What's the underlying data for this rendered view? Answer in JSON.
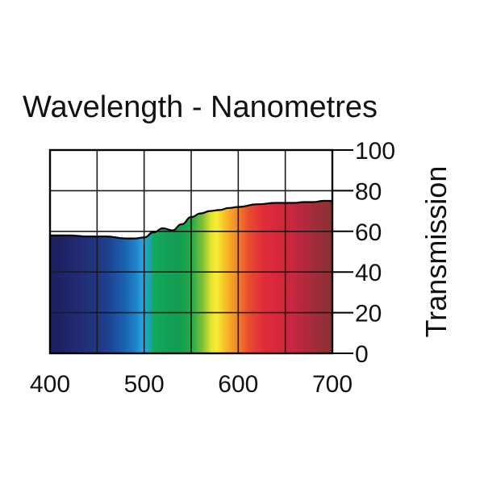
{
  "chart_data": {
    "type": "area",
    "title": "Wavelength - Nanometres",
    "xlabel": "",
    "ylabel": "Transmission",
    "xlim": [
      400,
      700
    ],
    "ylim": [
      0,
      100
    ],
    "x_ticks": [
      "400",
      "500",
      "600",
      "700"
    ],
    "y_ticks": [
      "0",
      "20",
      "40",
      "60",
      "80",
      "100"
    ],
    "grid": true,
    "y_axis_side": "right",
    "fill": "visible-spectrum",
    "series": [
      {
        "x": [
          400,
          420,
          440,
          460,
          480,
          490,
          500,
          510,
          520,
          530,
          540,
          550,
          560,
          570,
          580,
          590,
          600,
          620,
          640,
          660,
          670,
          680,
          690,
          700
        ],
        "values": [
          58,
          58,
          57.5,
          57.5,
          56.5,
          56.5,
          57,
          59.5,
          61.5,
          60.5,
          63.5,
          67,
          68.8,
          70,
          70.5,
          71.5,
          72,
          73.3,
          74,
          74,
          74.4,
          74.4,
          75,
          75
        ]
      }
    ]
  }
}
